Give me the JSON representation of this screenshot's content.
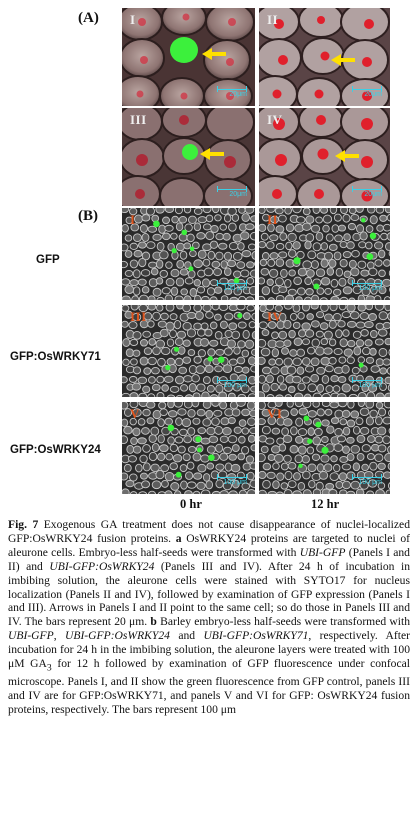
{
  "figure": {
    "panel_a_label": "(A)",
    "panel_b_label": "(B)",
    "a_panels": [
      {
        "numeral": "I",
        "scale": "20μm"
      },
      {
        "numeral": "II",
        "scale": "20μm"
      },
      {
        "numeral": "III",
        "scale": "20μm"
      },
      {
        "numeral": "IV",
        "scale": "20μm"
      }
    ],
    "b_rows": [
      {
        "label": "GFP",
        "numerals": [
          "I",
          "II"
        ],
        "scales": [
          "100 μm",
          "100 μm"
        ]
      },
      {
        "label": "GFP:OsWRKY71",
        "numerals": [
          "III",
          "IV"
        ],
        "scales": [
          "100 μm",
          "100 μm"
        ]
      },
      {
        "label": "GFP:OsWRKY24",
        "numerals": [
          "V",
          "VI"
        ],
        "scales": [
          "100 μm",
          "100 μm"
        ]
      }
    ],
    "columns": [
      "0 hr",
      "12 hr"
    ]
  },
  "caption": {
    "fig_label": "Fig. 7",
    "s1": " Exogenous GA treatment does not cause disappearance of nuclei-localized GFP:OsWRKY24 fusion proteins. ",
    "a": "a",
    "s2": " OsWRKY24 proteins are targeted to nuclei of aleurone cells. Embryo-less half-seeds were transformed with ",
    "ubi_gfp": "UBI-GFP",
    "s3": " (Panels I and II) and ",
    "ubi_gfp_24": "UBI-GFP:OsWRKY24",
    "s4": " (Panels III and IV). After 24 h of incubation in imbibing solution, the aleurone cells were stained with SYTO17 for nucleus localization (Panels II and IV), followed by examination of GFP expression (Panels I and III). Arrows in Panels I and II point to the same cell; so do those in Panels III and IV. The bars represent 20 μm. ",
    "b": "b",
    "s5": " Barley embryo-less half-seeds were transformed with ",
    "ubi_gfp_2": "UBI-GFP",
    "s6": ", ",
    "ubi_gfp_24_2": "UBI-GFP:OsWRKY24",
    "s7": " and ",
    "ubi_gfp_71": "UBI-GFP:OsWRKY71",
    "s8": ", respectively. After incubation for 24 h in the imbibing solution, the aleurone layers were treated with 100 μM GA",
    "ga_sub": "3",
    "s9": " for 12 h followed by examination of GFP fluorescence under confocal microscope. Panels I, and II show the green fluorescence from GFP control, panels III and IV are for GFP:OsWRKY71, and panels V and VI for GFP: OsWRKY24 fusion proteins, respectively. The bars represent 100 μm"
  },
  "colors": {
    "gfp_green": "#3cf03c",
    "nucleus_red": "#e0202c",
    "arrow_yellow": "#ffe000",
    "scale_cyan": "#3bd0e6",
    "numeral_orange": "#e0561e"
  }
}
